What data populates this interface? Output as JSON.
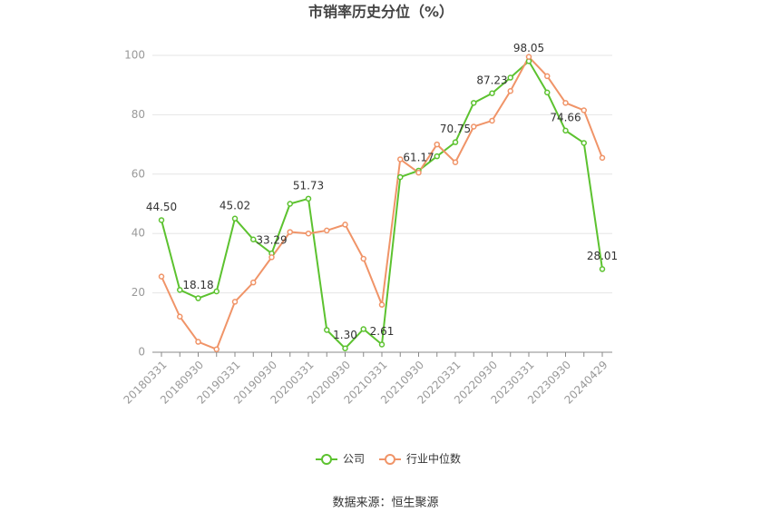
{
  "chart_data": {
    "type": "line",
    "title": "市销率历史分位（%）",
    "categories": [
      "20180331",
      null,
      "20180930",
      null,
      "20190331",
      null,
      "20190930",
      null,
      "20200331",
      null,
      "20200930",
      null,
      "20210331",
      null,
      "20210930",
      null,
      "20220331",
      null,
      "20220930",
      null,
      "20230331",
      null,
      "20230930",
      null,
      "20240429"
    ],
    "series": [
      {
        "name": "公司",
        "color": "#5cc22f",
        "values": [
          44.5,
          21,
          18.18,
          20.5,
          45.02,
          38,
          33.29,
          50,
          51.73,
          7.5,
          1.3,
          7.8,
          2.61,
          59,
          61.17,
          66,
          70.75,
          84,
          87.23,
          92.5,
          98.05,
          87.5,
          74.66,
          70.5,
          28.01
        ],
        "value_labels": [
          "44.50",
          null,
          "18.18",
          null,
          "45.02",
          null,
          "33.29",
          null,
          "51.73",
          null,
          "1.30",
          null,
          "2.61",
          null,
          "61.17",
          null,
          "70.75",
          null,
          "87.23",
          null,
          "98.05",
          null,
          "74.66",
          null,
          "28.01"
        ]
      },
      {
        "name": "行业中位数",
        "color": "#f09468",
        "values": [
          25.5,
          12,
          3.5,
          1,
          17,
          23.5,
          32,
          40.5,
          40,
          41,
          43,
          31.5,
          16,
          65,
          60.5,
          70,
          64,
          76,
          78,
          88,
          99.5,
          93,
          84,
          81.5,
          65.5
        ]
      }
    ],
    "ylim": [
      0,
      100
    ],
    "yticks": [
      0,
      20,
      40,
      60,
      80,
      100
    ],
    "grid": true,
    "legend": "bottom",
    "source": "数据来源：恒生聚源"
  }
}
